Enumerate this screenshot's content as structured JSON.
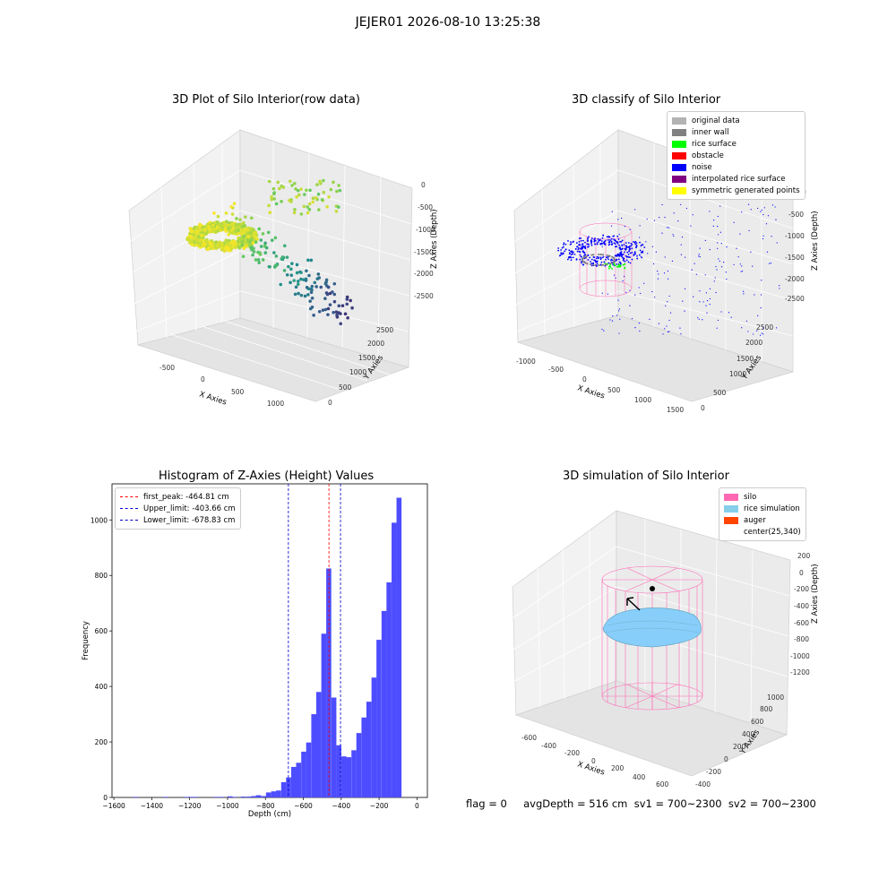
{
  "suptitle": "JEJER01 2026-08-10 13:25:38",
  "panels": {
    "raw": {
      "title": "3D Plot of Silo Interior(row data)"
    },
    "classify": {
      "title": "3D classify of Silo Interior"
    },
    "histogram": {
      "title": "Histogram of Z-Axies (Height) Values"
    },
    "simulation": {
      "title": "3D simulation of Silo Interior"
    }
  },
  "colors": {
    "hist_bar": "#4d4dff",
    "peak_line": "#ff0000",
    "limit_line": "#0000cc",
    "silo": "#ff69b4",
    "rice": "#87cefa",
    "auger": "#ff4500",
    "noise": "#0000ff",
    "inner_wall": "#808080",
    "rice_surface": "#00ff00",
    "original": "#b3b3b3"
  },
  "status_line": "flag = 0     avgDepth = 516 cm  sv1 = 700~2300  sv2 = 700~2300",
  "chart_data": [
    {
      "type": "scatter",
      "title": "3D Plot of Silo Interior(row data)",
      "xlabel": "X Axies",
      "ylabel": "Y Axies",
      "zlabel": "Z Axies (Depth)",
      "x_ticks": [
        "-500",
        "0",
        "500",
        "1000"
      ],
      "y_ticks": [
        "0",
        "500",
        "1000",
        "1500",
        "2000",
        "2500"
      ],
      "z_ticks": [
        "0",
        "-500",
        "-1000",
        "-1500",
        "-2000",
        "-2500"
      ],
      "colormap": "viridis"
    },
    {
      "type": "scatter",
      "title": "3D classify of Silo Interior",
      "xlabel": "X Axies",
      "ylabel": "Y Axies",
      "zlabel": "Z Axies (Depth)",
      "x_ticks": [
        "-1000",
        "-500",
        "0",
        "500",
        "1000",
        "1500"
      ],
      "y_ticks": [
        "0",
        "500",
        "1000",
        "1500",
        "2000",
        "2500"
      ],
      "z_ticks": [
        "0",
        "-500",
        "-1000",
        "-1500",
        "-2000",
        "-2500"
      ],
      "legend": [
        {
          "label": "original data",
          "color": "#b3b3b3"
        },
        {
          "label": "inner wall",
          "color": "#808080"
        },
        {
          "label": "rice surface",
          "color": "#00ff00"
        },
        {
          "label": "obstacle",
          "color": "#ff0000"
        },
        {
          "label": "noise",
          "color": "#0000ff"
        },
        {
          "label": "interpolated rice surface",
          "color": "#800080"
        },
        {
          "label": "symmetric generated points",
          "color": "#ffff00"
        }
      ],
      "legend_position": "top-right"
    },
    {
      "type": "bar",
      "title": "Histogram of Z-Axies (Height) Values",
      "xlabel": "Depth (cm)",
      "ylabel": "Frequency",
      "xlim": [
        -1610,
        55
      ],
      "ylim": [
        0,
        1130
      ],
      "x_ticks": [
        -1600,
        -1400,
        -1200,
        -1000,
        -800,
        -600,
        -400,
        -200,
        0
      ],
      "y_ticks": [
        0,
        200,
        400,
        600,
        800,
        1000
      ],
      "bin_width": 26.5,
      "bins": [
        [
          -1500,
          2
        ],
        [
          -1340,
          2
        ],
        [
          -1230,
          2
        ],
        [
          -1205,
          2
        ],
        [
          -1180,
          2
        ],
        [
          -1075,
          2
        ],
        [
          -1045,
          2
        ],
        [
          -1000,
          4
        ],
        [
          -975,
          2
        ],
        [
          -930,
          3
        ],
        [
          -900,
          3
        ],
        [
          -875,
          5
        ],
        [
          -850,
          8
        ],
        [
          -823,
          5
        ],
        [
          -797,
          18
        ],
        [
          -770,
          22
        ],
        [
          -744,
          25
        ],
        [
          -717,
          55
        ],
        [
          -691,
          72
        ],
        [
          -664,
          110
        ],
        [
          -638,
          125
        ],
        [
          -611,
          165
        ],
        [
          -585,
          198
        ],
        [
          -558,
          300
        ],
        [
          -532,
          380
        ],
        [
          -505,
          590
        ],
        [
          -479,
          825
        ],
        [
          -452,
          360
        ],
        [
          -426,
          188
        ],
        [
          -399,
          148
        ],
        [
          -373,
          145
        ],
        [
          -346,
          170
        ],
        [
          -320,
          232
        ],
        [
          -293,
          288
        ],
        [
          -267,
          345
        ],
        [
          -240,
          432
        ],
        [
          -214,
          568
        ],
        [
          -187,
          672
        ],
        [
          -161,
          775
        ],
        [
          -134,
          990
        ],
        [
          -108,
          1080
        ]
      ],
      "vlines": [
        {
          "label": "first_peak: -464.81 cm",
          "x": -464.81,
          "color": "#ff0000"
        },
        {
          "label": "Upper_limit: -403.66 cm",
          "x": -403.66,
          "color": "#0000cc"
        },
        {
          "label": "Lower_limit: -678.83 cm",
          "x": -678.83,
          "color": "#0000cc"
        }
      ],
      "legend_position": "top-left"
    },
    {
      "type": "scatter",
      "title": "3D simulation of Silo Interior",
      "xlabel": "X Axies",
      "ylabel": "Y Axies",
      "zlabel": "Z Axies (Depth)",
      "x_ticks": [
        "-600",
        "-400",
        "-200",
        "0",
        "200",
        "400",
        "600"
      ],
      "y_ticks": [
        "-400",
        "-200",
        "0",
        "200",
        "400",
        "600",
        "800",
        "1000"
      ],
      "z_ticks": [
        "200",
        "0",
        "-200",
        "-400",
        "-600",
        "-800",
        "-1000",
        "-1200"
      ],
      "legend": [
        {
          "label": "silo",
          "color": "#ff69b4"
        },
        {
          "label": "rice simulation",
          "color": "#87ceeb"
        },
        {
          "label": "auger",
          "color": "#ff4500"
        },
        {
          "label": "center(25,340)",
          "color": ""
        }
      ],
      "legend_position": "top-right"
    }
  ]
}
